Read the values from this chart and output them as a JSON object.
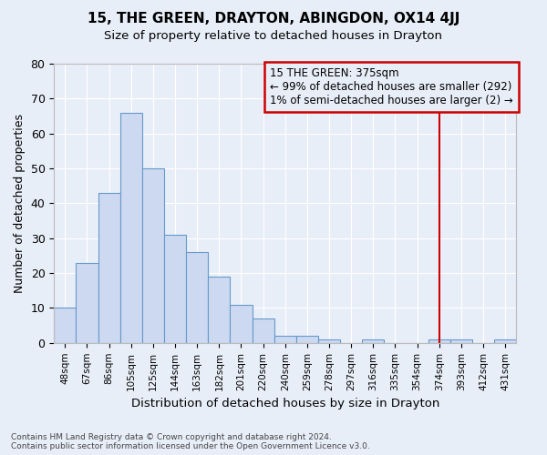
{
  "title": "15, THE GREEN, DRAYTON, ABINGDON, OX14 4JJ",
  "subtitle": "Size of property relative to detached houses in Drayton",
  "xlabel": "Distribution of detached houses by size in Drayton",
  "ylabel": "Number of detached properties",
  "footer_line1": "Contains HM Land Registry data © Crown copyright and database right 2024.",
  "footer_line2": "Contains public sector information licensed under the Open Government Licence v3.0.",
  "bin_labels": [
    "48sqm",
    "67sqm",
    "86sqm",
    "105sqm",
    "125sqm",
    "144sqm",
    "163sqm",
    "182sqm",
    "201sqm",
    "220sqm",
    "240sqm",
    "259sqm",
    "278sqm",
    "297sqm",
    "316sqm",
    "335sqm",
    "354sqm",
    "374sqm",
    "393sqm",
    "412sqm",
    "431sqm"
  ],
  "values": [
    10,
    23,
    43,
    66,
    50,
    31,
    26,
    19,
    11,
    7,
    2,
    2,
    1,
    0,
    1,
    0,
    0,
    1,
    1,
    0,
    1
  ],
  "bar_fill_color": "#ccd9f0",
  "bar_edge_color": "#6699cc",
  "bg_color": "#e8eef8",
  "grid_color": "#ffffff",
  "vline_x_index": 17,
  "vline_color": "#cc0000",
  "annotation_text": "15 THE GREEN: 375sqm\n← 99% of detached houses are smaller (292)\n1% of semi-detached houses are larger (2) →",
  "ylim": [
    0,
    80
  ],
  "yticks": [
    0,
    10,
    20,
    30,
    40,
    50,
    60,
    70,
    80
  ]
}
